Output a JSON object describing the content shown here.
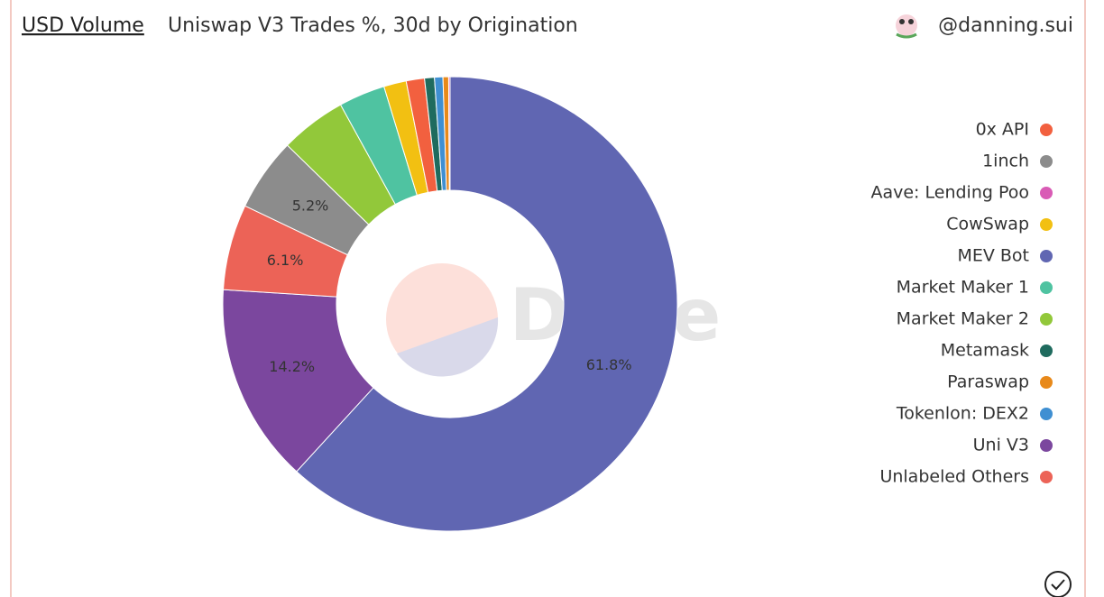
{
  "chart_data": {
    "type": "pie",
    "tab": "USD Volume",
    "title": "Uniswap V3 Trades %, 30d by Origination",
    "author": "@danning.sui",
    "watermark": "Dune",
    "donut": true,
    "categories": [
      "MEV Bot",
      "Uni V3",
      "Unlabeled Others",
      "1inch",
      "Market Maker 2",
      "Market Maker 1",
      "CowSwap",
      "0x API",
      "Metamask",
      "Tokenlon: DEX2",
      "Paraswap",
      "Aave: Lending Poo"
    ],
    "values": [
      61.8,
      14.2,
      6.1,
      5.2,
      4.7,
      3.3,
      1.6,
      1.3,
      0.7,
      0.6,
      0.4,
      0.1
    ],
    "value_labels": [
      "61.8%",
      "14.2%",
      "6.1%",
      "5.2%",
      null,
      null,
      null,
      null,
      null,
      null,
      null,
      null
    ],
    "colors": [
      "#6066b2",
      "#7b479e",
      "#ec6357",
      "#8c8c8c",
      "#92c83a",
      "#4fc3a1",
      "#f2c012",
      "#f2603f",
      "#1f6b5e",
      "#3f8fd2",
      "#e8891a",
      "#d95bb5"
    ],
    "legend": "right"
  }
}
